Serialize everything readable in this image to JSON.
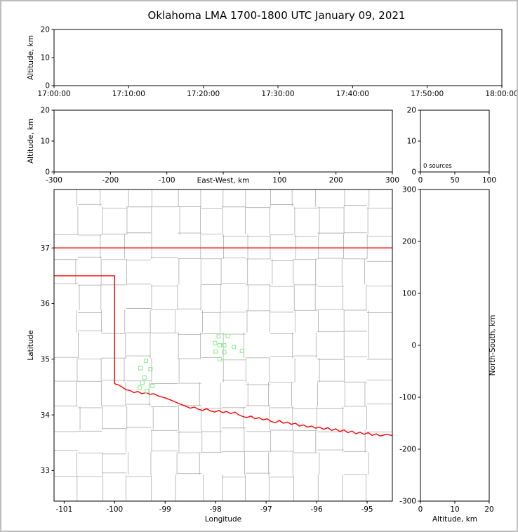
{
  "title": "Oklahoma LMA 1700-1800 UTC January 09, 2021",
  "colors": {
    "frame": "#000000",
    "county": "#b4b4b4",
    "state_border": "#ff0000",
    "station": "#90ee90",
    "background": "#ffffff",
    "page_border": "#bdbdbd"
  },
  "chart_data": {
    "figure_title": "Oklahoma LMA 1700-1800 UTC January 09, 2021",
    "panels": {
      "time_height": {
        "type": "scatter",
        "ylabel": "Altitude, km",
        "xlim": [
          0,
          3600
        ],
        "ylim": [
          0,
          20
        ],
        "xticks": {
          "values": [
            0,
            600,
            1200,
            1800,
            2400,
            3000,
            3600
          ],
          "labels": [
            "17:00:00",
            "17:10:00",
            "17:20:00",
            "17:30:00",
            "17:40:00",
            "17:50:00",
            "18:00:00"
          ]
        },
        "yticks": {
          "values": [
            0,
            10,
            20
          ],
          "labels": [
            "0",
            "10",
            "20"
          ]
        },
        "points": []
      },
      "ew_alt": {
        "type": "scatter",
        "ylabel": "Altitude, km",
        "xlabel": "East-West, km",
        "xlim": [
          -300,
          300
        ],
        "ylim": [
          0,
          20
        ],
        "xticks": {
          "values": [
            -300,
            -200,
            -100,
            0,
            100,
            200,
            300
          ],
          "labels": [
            "-300",
            "-200",
            "-100",
            "",
            "100",
            "200",
            "300"
          ]
        },
        "yticks": {
          "values": [
            0,
            10,
            20
          ],
          "labels": [
            "0",
            "10",
            "20"
          ]
        },
        "points": []
      },
      "alt_hist": {
        "type": "histogram",
        "annotation": "0 sources",
        "xlim": [
          0,
          100
        ],
        "ylim": [
          0,
          20
        ],
        "xticks": {
          "values": [
            0,
            50,
            100
          ],
          "labels": [
            "0",
            "50",
            "100"
          ]
        },
        "yticks": {
          "values": [
            0,
            10,
            20
          ],
          "labels": [
            "0",
            "10",
            "20"
          ]
        },
        "points": []
      },
      "plan_view": {
        "type": "map-scatter",
        "xlabel": "Longitude",
        "ylabel": "Latitude",
        "xlim": [
          -101.2,
          -94.5
        ],
        "ylim": [
          32.45,
          38.05
        ],
        "xticks": {
          "values": [
            -101,
            -100,
            -99,
            -98,
            -97,
            -96,
            -95
          ],
          "labels": [
            "-101",
            "-100",
            "-99",
            "-98",
            "-97",
            "-96",
            "-95"
          ]
        },
        "yticks": {
          "values": [
            33,
            34,
            35,
            36,
            37
          ],
          "labels": [
            "33",
            "34",
            "35",
            "36",
            "37"
          ]
        },
        "stations": [
          [
            -99.38,
            34.97
          ],
          [
            -99.49,
            34.84
          ],
          [
            -99.29,
            34.82
          ],
          [
            -99.41,
            34.67
          ],
          [
            -99.45,
            34.58
          ],
          [
            -99.25,
            34.52
          ],
          [
            -99.5,
            34.49
          ],
          [
            -99.36,
            34.43
          ],
          [
            -97.94,
            35.41
          ],
          [
            -97.76,
            35.42
          ],
          [
            -98.01,
            35.29
          ],
          [
            -97.92,
            35.25
          ],
          [
            -97.83,
            35.25
          ],
          [
            -97.64,
            35.22
          ],
          [
            -98.0,
            35.14
          ],
          [
            -97.83,
            35.13
          ],
          [
            -97.48,
            35.15
          ],
          [
            -97.92,
            35.0
          ]
        ],
        "state_border": [
          [
            [
              -101.2,
              37.0
            ],
            [
              -94.5,
              37.0
            ]
          ],
          [
            [
              -101.2,
              36.5
            ],
            [
              -100.0,
              36.5
            ],
            [
              -100.0,
              34.56
            ],
            [
              -99.93,
              34.54
            ],
            [
              -99.85,
              34.5
            ],
            [
              -99.77,
              34.45
            ],
            [
              -99.7,
              34.44
            ],
            [
              -99.62,
              34.4
            ],
            [
              -99.54,
              34.42
            ],
            [
              -99.46,
              34.38
            ],
            [
              -99.38,
              34.4
            ],
            [
              -99.3,
              34.37
            ],
            [
              -99.22,
              34.38
            ],
            [
              -99.14,
              34.34
            ],
            [
              -99.06,
              34.32
            ],
            [
              -98.98,
              34.3
            ],
            [
              -98.9,
              34.27
            ],
            [
              -98.82,
              34.24
            ],
            [
              -98.74,
              34.21
            ],
            [
              -98.66,
              34.18
            ],
            [
              -98.58,
              34.15
            ],
            [
              -98.5,
              34.12
            ],
            [
              -98.42,
              34.14
            ],
            [
              -98.34,
              34.1
            ],
            [
              -98.26,
              34.08
            ],
            [
              -98.18,
              34.11
            ],
            [
              -98.1,
              34.07
            ],
            [
              -98.02,
              34.05
            ],
            [
              -97.94,
              34.08
            ],
            [
              -97.86,
              34.04
            ],
            [
              -97.78,
              34.06
            ],
            [
              -97.7,
              34.02
            ],
            [
              -97.62,
              34.05
            ],
            [
              -97.54,
              34.0
            ],
            [
              -97.46,
              33.97
            ],
            [
              -97.38,
              33.95
            ],
            [
              -97.3,
              33.98
            ],
            [
              -97.22,
              33.93
            ],
            [
              -97.14,
              33.95
            ],
            [
              -97.06,
              33.91
            ],
            [
              -96.98,
              33.93
            ],
            [
              -96.9,
              33.88
            ],
            [
              -96.82,
              33.86
            ],
            [
              -96.74,
              33.9
            ],
            [
              -96.66,
              33.85
            ],
            [
              -96.58,
              33.87
            ],
            [
              -96.5,
              33.83
            ],
            [
              -96.42,
              33.85
            ],
            [
              -96.34,
              33.8
            ],
            [
              -96.26,
              33.82
            ],
            [
              -96.18,
              33.78
            ],
            [
              -96.1,
              33.8
            ],
            [
              -96.02,
              33.76
            ],
            [
              -95.94,
              33.78
            ],
            [
              -95.86,
              33.74
            ],
            [
              -95.78,
              33.77
            ],
            [
              -95.7,
              33.72
            ],
            [
              -95.62,
              33.75
            ],
            [
              -95.54,
              33.7
            ],
            [
              -95.46,
              33.73
            ],
            [
              -95.38,
              33.68
            ],
            [
              -95.3,
              33.71
            ],
            [
              -95.22,
              33.66
            ],
            [
              -95.14,
              33.69
            ],
            [
              -95.06,
              33.65
            ],
            [
              -94.98,
              33.68
            ],
            [
              -94.9,
              33.63
            ],
            [
              -94.82,
              33.66
            ],
            [
              -94.74,
              33.62
            ],
            [
              -94.62,
              33.65
            ],
            [
              -94.5,
              33.63
            ]
          ]
        ],
        "county_grid": {
          "seed": 11,
          "col_step": 0.47,
          "row_step": 0.45,
          "jitter": 0.045,
          "skip": 0.08
        }
      },
      "ns_alt": {
        "type": "scatter",
        "xlabel": "Altitude, km",
        "ylabel": "North-South, km",
        "xlim": [
          0,
          20
        ],
        "ylim": [
          -300,
          300
        ],
        "xticks": {
          "values": [
            0,
            10,
            20
          ],
          "labels": [
            "0",
            "10",
            "20"
          ]
        },
        "yticks": {
          "values": [
            -300,
            -200,
            -100,
            0,
            100,
            200,
            300
          ],
          "labels": [
            "-300",
            "-200",
            "-100",
            "0",
            "100",
            "200",
            "300"
          ]
        },
        "points": []
      }
    }
  }
}
